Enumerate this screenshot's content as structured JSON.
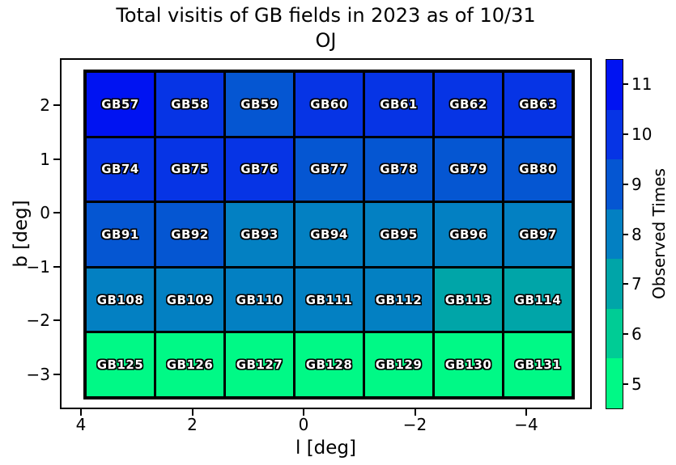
{
  "chart_data": {
    "type": "heatmap",
    "title": "Total visitis of GB fields in 2023 as of 10/31",
    "subtitle": "OJ",
    "xlabel": "l [deg]",
    "ylabel": "b [deg]",
    "x_ticks": [
      "4",
      "2",
      "0",
      "−2",
      "−4"
    ],
    "y_ticks": [
      "2",
      "1",
      "0",
      "−1",
      "−2",
      "−3"
    ],
    "value_range": [
      4.5,
      11.5
    ],
    "legend_position": "right",
    "colorbar": {
      "label": "Observed Times",
      "ticks": [
        "11",
        "10",
        "9",
        "8",
        "7",
        "6",
        "5"
      ],
      "band_values_top_to_bottom": [
        11,
        10,
        9,
        8,
        7,
        6,
        5
      ]
    },
    "colors_by_value": {
      "5": "#00F986",
      "6": "#00CC95",
      "7": "#00A5A8",
      "8": "#0380C2",
      "9": "#0556D2",
      "10": "#0634E5",
      "11": "#0013F2"
    },
    "rows": [
      [
        {
          "label": "GB57",
          "value": 11
        },
        {
          "label": "GB58",
          "value": 10
        },
        {
          "label": "GB59",
          "value": 9
        },
        {
          "label": "GB60",
          "value": 10
        },
        {
          "label": "GB61",
          "value": 10
        },
        {
          "label": "GB62",
          "value": 10
        },
        {
          "label": "GB63",
          "value": 10
        }
      ],
      [
        {
          "label": "GB74",
          "value": 10
        },
        {
          "label": "GB75",
          "value": 10
        },
        {
          "label": "GB76",
          "value": 10
        },
        {
          "label": "GB77",
          "value": 9
        },
        {
          "label": "GB78",
          "value": 9
        },
        {
          "label": "GB79",
          "value": 9
        },
        {
          "label": "GB80",
          "value": 9
        }
      ],
      [
        {
          "label": "GB91",
          "value": 9
        },
        {
          "label": "GB92",
          "value": 9
        },
        {
          "label": "GB93",
          "value": 8
        },
        {
          "label": "GB94",
          "value": 8
        },
        {
          "label": "GB95",
          "value": 8
        },
        {
          "label": "GB96",
          "value": 8
        },
        {
          "label": "GB97",
          "value": 8
        }
      ],
      [
        {
          "label": "GB108",
          "value": 8
        },
        {
          "label": "GB109",
          "value": 8
        },
        {
          "label": "GB110",
          "value": 8
        },
        {
          "label": "GB111",
          "value": 8
        },
        {
          "label": "GB112",
          "value": 8
        },
        {
          "label": "GB113",
          "value": 7
        },
        {
          "label": "GB114",
          "value": 7
        }
      ],
      [
        {
          "label": "GB125",
          "value": 5
        },
        {
          "label": "GB126",
          "value": 5
        },
        {
          "label": "GB127",
          "value": 5
        },
        {
          "label": "GB128",
          "value": 5
        },
        {
          "label": "GB129",
          "value": 5
        },
        {
          "label": "GB130",
          "value": 5
        },
        {
          "label": "GB131",
          "value": 5
        }
      ]
    ]
  }
}
